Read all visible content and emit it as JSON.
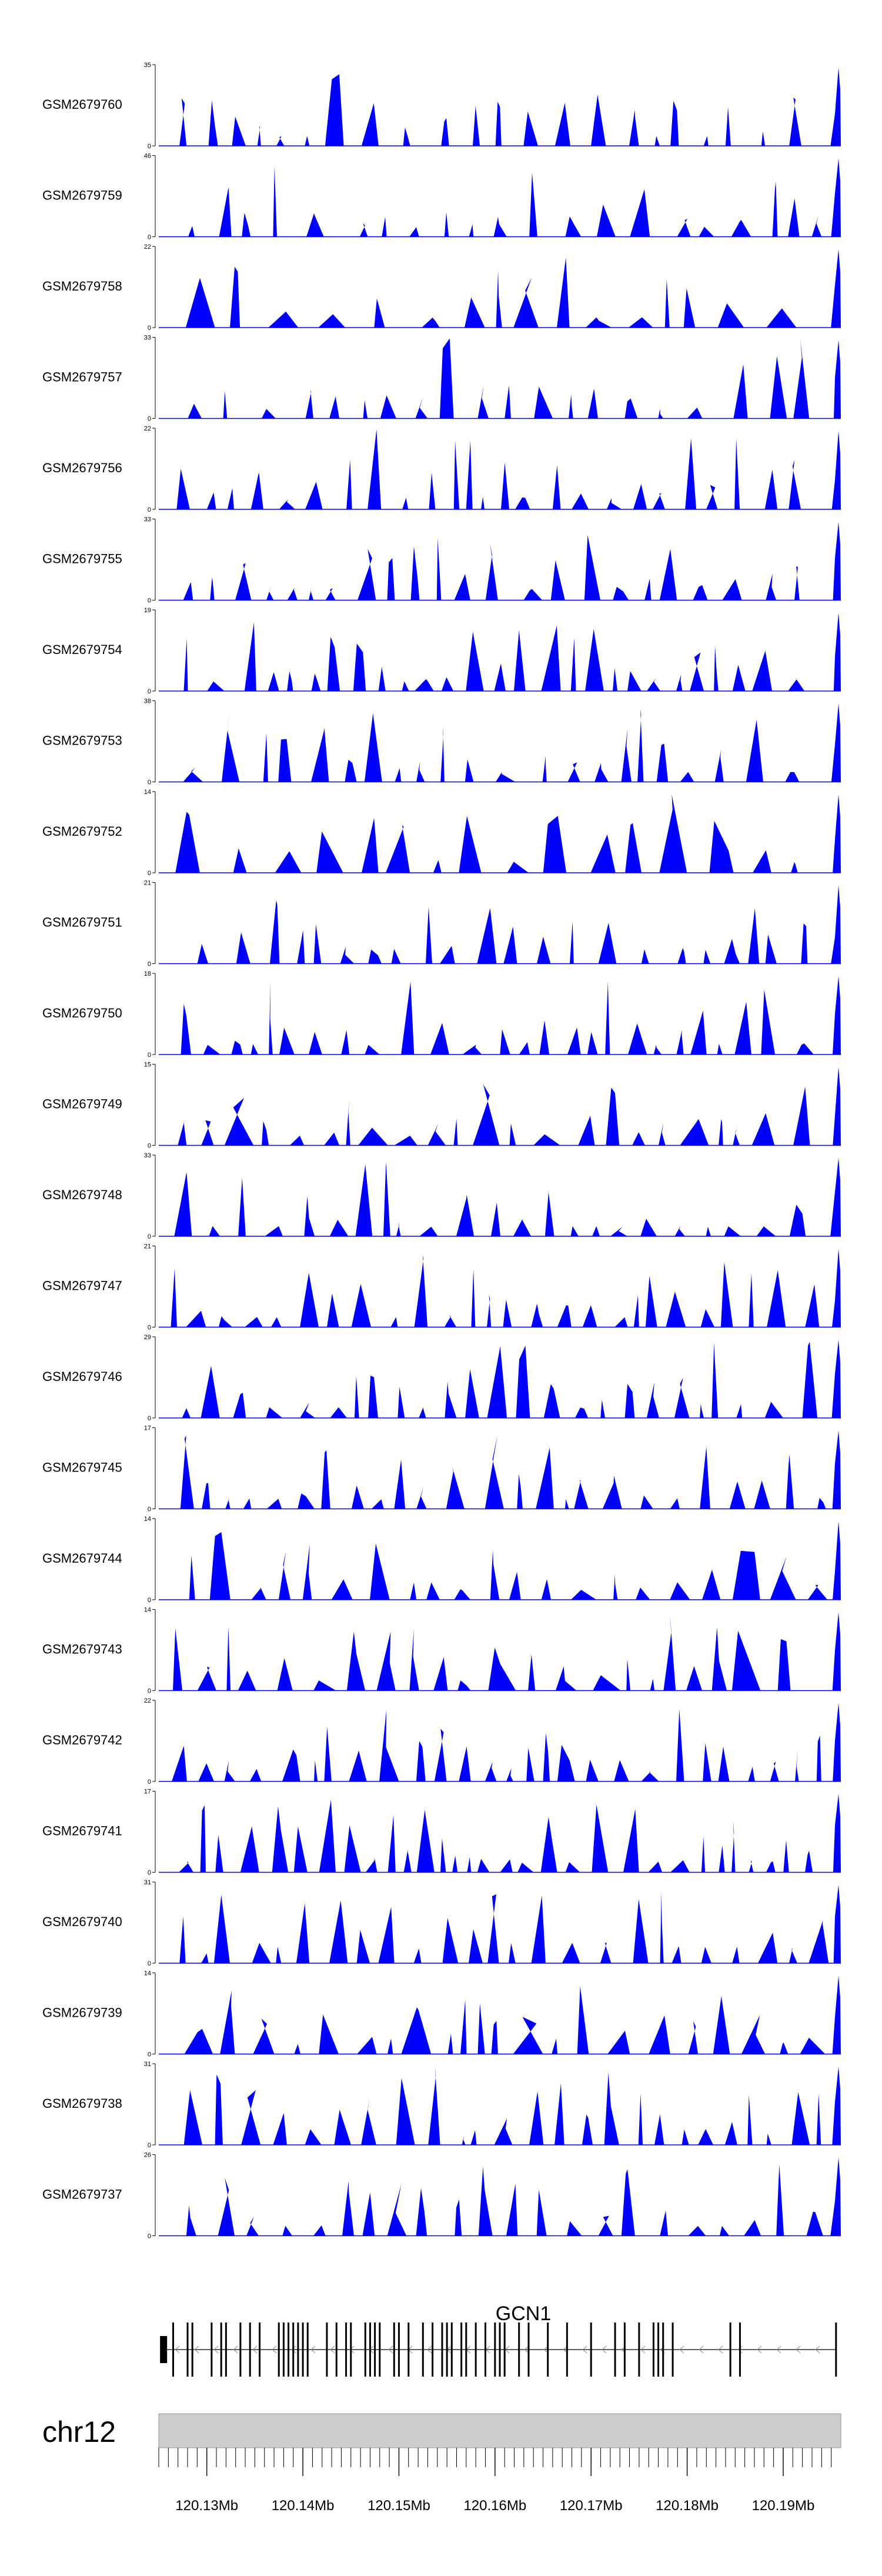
{
  "chart_data": {
    "type": "area",
    "title": "",
    "fill_color": "#0000ff",
    "x_range": [
      120.125,
      120.196
    ],
    "tracks": [
      {
        "name": "GSM2679760",
        "ymax": 35,
        "seed": 11,
        "density": 0.7,
        "bias": 0.08
      },
      {
        "name": "GSM2679759",
        "ymax": 46,
        "seed": 23,
        "density": 0.55,
        "bias": 0.05
      },
      {
        "name": "GSM2679758",
        "ymax": 22,
        "seed": 37,
        "density": 0.45,
        "bias": 0.18
      },
      {
        "name": "GSM2679757",
        "ymax": 33,
        "seed": 41,
        "density": 0.6,
        "bias": 0.06
      },
      {
        "name": "GSM2679756",
        "ymax": 22,
        "seed": 53,
        "density": 0.85,
        "bias": 0.12
      },
      {
        "name": "GSM2679755",
        "ymax": 33,
        "seed": 67,
        "density": 0.75,
        "bias": 0.07
      },
      {
        "name": "GSM2679754",
        "ymax": 19,
        "seed": 71,
        "density": 0.9,
        "bias": 0.14
      },
      {
        "name": "GSM2679753",
        "ymax": 38,
        "seed": 83,
        "density": 0.8,
        "bias": 0.05
      },
      {
        "name": "GSM2679752",
        "ymax": 14,
        "seed": 97,
        "density": 0.6,
        "bias": 0.2
      },
      {
        "name": "GSM2679751",
        "ymax": 21,
        "seed": 101,
        "density": 0.65,
        "bias": 0.12
      },
      {
        "name": "GSM2679750",
        "ymax": 18,
        "seed": 113,
        "density": 0.95,
        "bias": 0.12
      },
      {
        "name": "GSM2679749",
        "ymax": 15,
        "seed": 127,
        "density": 0.9,
        "bias": 0.18
      },
      {
        "name": "GSM2679748",
        "ymax": 33,
        "seed": 131,
        "density": 0.9,
        "bias": 0.05
      },
      {
        "name": "GSM2679747",
        "ymax": 21,
        "seed": 139,
        "density": 0.95,
        "bias": 0.14
      },
      {
        "name": "GSM2679746",
        "ymax": 29,
        "seed": 149,
        "density": 0.9,
        "bias": 0.1
      },
      {
        "name": "GSM2679745",
        "ymax": 17,
        "seed": 157,
        "density": 0.85,
        "bias": 0.12
      },
      {
        "name": "GSM2679744",
        "ymax": 14,
        "seed": 163,
        "density": 0.9,
        "bias": 0.2
      },
      {
        "name": "GSM2679743",
        "ymax": 14,
        "seed": 173,
        "density": 0.9,
        "bias": 0.22
      },
      {
        "name": "GSM2679742",
        "ymax": 22,
        "seed": 179,
        "density": 0.9,
        "bias": 0.12
      },
      {
        "name": "GSM2679741",
        "ymax": 17,
        "seed": 191,
        "density": 1.0,
        "bias": 0.15
      },
      {
        "name": "GSM2679740",
        "ymax": 31,
        "seed": 197,
        "density": 0.9,
        "bias": 0.06
      },
      {
        "name": "GSM2679739",
        "ymax": 14,
        "seed": 211,
        "density": 1.0,
        "bias": 0.2
      },
      {
        "name": "GSM2679738",
        "ymax": 31,
        "seed": 223,
        "density": 0.9,
        "bias": 0.06
      },
      {
        "name": "GSM2679737",
        "ymax": 26,
        "seed": 229,
        "density": 0.8,
        "bias": 0.08
      }
    ],
    "gene": {
      "name": "GCN1",
      "strand": "-",
      "exons": [
        120.1255,
        120.1265,
        120.128,
        120.1285,
        120.1305,
        120.1315,
        120.132,
        120.1335,
        120.1345,
        120.1355,
        120.1375,
        120.138,
        120.1385,
        120.139,
        120.1395,
        120.14,
        120.1405,
        120.1425,
        120.1435,
        120.1445,
        120.145,
        120.1465,
        120.147,
        120.1475,
        120.148,
        120.1495,
        120.15,
        120.151,
        120.1525,
        120.1535,
        120.1545,
        120.155,
        120.1555,
        120.1565,
        120.157,
        120.158,
        120.159,
        120.16,
        120.1605,
        120.161,
        120.1625,
        120.1635,
        120.1655,
        120.1675,
        120.17,
        120.1725,
        120.1735,
        120.175,
        120.1765,
        120.177,
        120.1775,
        120.1785,
        120.1845,
        120.1855,
        120.1955
      ]
    },
    "chromosome": {
      "name": "chr12",
      "ticks": [
        120.125,
        120.126,
        120.127,
        120.128,
        120.129,
        120.13,
        120.131,
        120.132,
        120.133,
        120.134,
        120.135,
        120.136,
        120.137,
        120.138,
        120.139,
        120.14,
        120.141,
        120.142,
        120.143,
        120.144,
        120.145,
        120.146,
        120.147,
        120.148,
        120.149,
        120.15,
        120.151,
        120.152,
        120.153,
        120.154,
        120.155,
        120.156,
        120.157,
        120.158,
        120.159,
        120.16,
        120.161,
        120.162,
        120.163,
        120.164,
        120.165,
        120.166,
        120.167,
        120.168,
        120.169,
        120.17,
        120.171,
        120.172,
        120.173,
        120.174,
        120.175,
        120.176,
        120.177,
        120.178,
        120.179,
        120.18,
        120.181,
        120.182,
        120.183,
        120.184,
        120.185,
        120.186,
        120.187,
        120.188,
        120.189,
        120.19,
        120.191,
        120.192,
        120.193,
        120.194,
        120.195
      ],
      "labeled_ticks": [
        {
          "value": 120.13,
          "label": "120.13Mb"
        },
        {
          "value": 120.14,
          "label": "120.14Mb"
        },
        {
          "value": 120.15,
          "label": "120.15Mb"
        },
        {
          "value": 120.16,
          "label": "120.16Mb"
        },
        {
          "value": 120.17,
          "label": "120.17Mb"
        },
        {
          "value": 120.18,
          "label": "120.18Mb"
        },
        {
          "value": 120.19,
          "label": "120.19Mb"
        }
      ]
    }
  }
}
